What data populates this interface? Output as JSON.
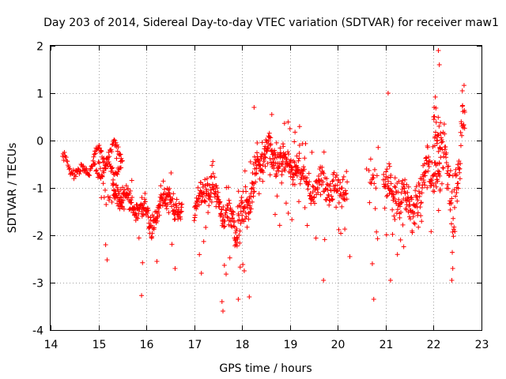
{
  "chart_data": {
    "type": "scatter",
    "title": "Day 203 of 2014, Sidereal Day-to-day VTEC variation (SDTVAR) for receiver maw1",
    "xlabel": "GPS time / hours",
    "ylabel": "SDTVAR / TECUs",
    "xlim": [
      14,
      23
    ],
    "ylim": [
      -4,
      2
    ],
    "xticks": [
      "14",
      "15",
      "16",
      "17",
      "18",
      "19",
      "20",
      "21",
      "22",
      "23"
    ],
    "yticks": [
      "-4",
      "-3",
      "-2",
      "-1",
      "0",
      "1",
      "2"
    ],
    "grid": true,
    "marker": "+",
    "color": "#ff0000",
    "series": [
      {
        "name": "SDTVAR",
        "segments": [
          {
            "x0": 14.25,
            "x1": 15.5,
            "step": 0.0125,
            "center": [
              [
                14.25,
                -0.45
              ],
              [
                14.45,
                -0.55
              ],
              [
                14.6,
                -0.75
              ],
              [
                14.8,
                -0.55
              ],
              [
                14.95,
                -0.3
              ],
              [
                15.1,
                -0.35
              ],
              [
                15.25,
                -0.2
              ],
              [
                15.35,
                -0.15
              ],
              [
                15.5,
                -0.3
              ]
            ],
            "spread": 0.12,
            "outlier_rate": 0.0
          },
          {
            "x0": 14.9,
            "x1": 15.5,
            "step": 0.015,
            "center": [
              [
                14.9,
                -0.45
              ],
              [
                15.1,
                -0.7
              ],
              [
                15.3,
                -0.55
              ],
              [
                15.5,
                -0.6
              ]
            ],
            "spread": 0.1,
            "outlier_rate": 0.0
          },
          {
            "x0": 15.0,
            "x1": 15.5,
            "step": 0.02,
            "center": [
              [
                15.0,
                -0.6
              ],
              [
                15.2,
                -1.1
              ],
              [
                15.4,
                -1.3
              ],
              [
                15.5,
                -1.2
              ]
            ],
            "spread": 0.25,
            "outlier_rate": 0.08
          },
          {
            "x0": 15.3,
            "x1": 16.3,
            "step": 0.006,
            "center": [
              [
                15.3,
                -1.0
              ],
              [
                15.6,
                -1.3
              ],
              [
                15.9,
                -1.45
              ],
              [
                16.1,
                -1.7
              ],
              [
                16.3,
                -1.5
              ]
            ],
            "spread": 0.3,
            "outlier_rate": 0.06
          },
          {
            "x0": 16.3,
            "x1": 16.75,
            "step": 0.006,
            "center": [
              [
                16.3,
                -1.1
              ],
              [
                16.45,
                -1.25
              ],
              [
                16.6,
                -1.5
              ],
              [
                16.75,
                -1.2
              ]
            ],
            "spread": 0.28,
            "outlier_rate": 0.06
          },
          {
            "x0": 17.0,
            "x1": 17.85,
            "step": 0.006,
            "center": [
              [
                17.0,
                -1.5
              ],
              [
                17.25,
                -0.9
              ],
              [
                17.5,
                -1.3
              ],
              [
                17.7,
                -1.6
              ],
              [
                17.85,
                -1.9
              ]
            ],
            "spread": 0.35,
            "outlier_rate": 0.08
          },
          {
            "x0": 17.85,
            "x1": 18.3,
            "step": 0.005,
            "center": [
              [
                17.85,
                -2.0
              ],
              [
                18.0,
                -1.6
              ],
              [
                18.15,
                -1.2
              ],
              [
                18.3,
                -0.7
              ]
            ],
            "spread": 0.5,
            "outlier_rate": 0.12
          },
          {
            "x0": 18.3,
            "x1": 19.2,
            "step": 0.005,
            "center": [
              [
                18.3,
                -0.5
              ],
              [
                18.6,
                -0.3
              ],
              [
                18.9,
                -0.5
              ],
              [
                19.2,
                -0.6
              ]
            ],
            "spread": 0.35,
            "outlier_rate": 0.1
          },
          {
            "x0": 19.2,
            "x1": 20.2,
            "step": 0.007,
            "center": [
              [
                19.2,
                -0.8
              ],
              [
                19.5,
                -1.0
              ],
              [
                19.8,
                -0.9
              ],
              [
                20.0,
                -1.1
              ],
              [
                20.2,
                -1.0
              ]
            ],
            "spread": 0.35,
            "outlier_rate": 0.12
          },
          {
            "x0": 20.65,
            "x1": 20.85,
            "step": 0.012,
            "center": [
              [
                20.65,
                -0.6
              ],
              [
                20.85,
                -1.0
              ]
            ],
            "spread": 0.25,
            "outlier_rate": 0.2
          },
          {
            "x0": 20.95,
            "x1": 21.75,
            "step": 0.006,
            "center": [
              [
                20.95,
                -0.9
              ],
              [
                21.2,
                -1.1
              ],
              [
                21.5,
                -1.3
              ],
              [
                21.75,
                -1.4
              ]
            ],
            "spread": 0.5,
            "outlier_rate": 0.1
          },
          {
            "x0": 21.75,
            "x1": 22.15,
            "step": 0.006,
            "center": [
              [
                21.75,
                -0.9
              ],
              [
                21.95,
                -0.7
              ],
              [
                22.15,
                -0.5
              ]
            ],
            "spread": 0.5,
            "outlier_rate": 0.1
          },
          {
            "x0": 22.0,
            "x1": 22.65,
            "step": 0.006,
            "center": [
              [
                22.0,
                0.5
              ],
              [
                22.2,
                0.0
              ],
              [
                22.4,
                -1.5
              ],
              [
                22.65,
                0.6
              ]
            ],
            "spread": 0.7,
            "outlier_rate": 0.1
          }
        ],
        "outliers": [
          [
            15.15,
            -2.2
          ],
          [
            15.9,
            -3.27
          ],
          [
            15.92,
            -2.58
          ],
          [
            16.22,
            -2.55
          ],
          [
            16.6,
            -2.7
          ],
          [
            17.15,
            -2.8
          ],
          [
            17.6,
            -3.6
          ],
          [
            17.58,
            -3.4
          ],
          [
            17.92,
            -3.35
          ],
          [
            18.15,
            -3.3
          ],
          [
            18.25,
            0.7
          ],
          [
            18.62,
            0.55
          ],
          [
            19.0,
            0.25
          ],
          [
            19.7,
            -2.95
          ],
          [
            20.25,
            -2.45
          ],
          [
            20.6,
            -0.6
          ],
          [
            20.75,
            -3.35
          ],
          [
            20.72,
            -2.6
          ],
          [
            21.05,
            1.0
          ],
          [
            21.1,
            -2.95
          ],
          [
            22.1,
            1.9
          ],
          [
            22.12,
            1.6
          ],
          [
            22.38,
            -2.95
          ],
          [
            22.4,
            -2.7
          ],
          [
            22.6,
            1.05
          ],
          [
            22.65,
            0.6
          ]
        ]
      }
    ]
  }
}
